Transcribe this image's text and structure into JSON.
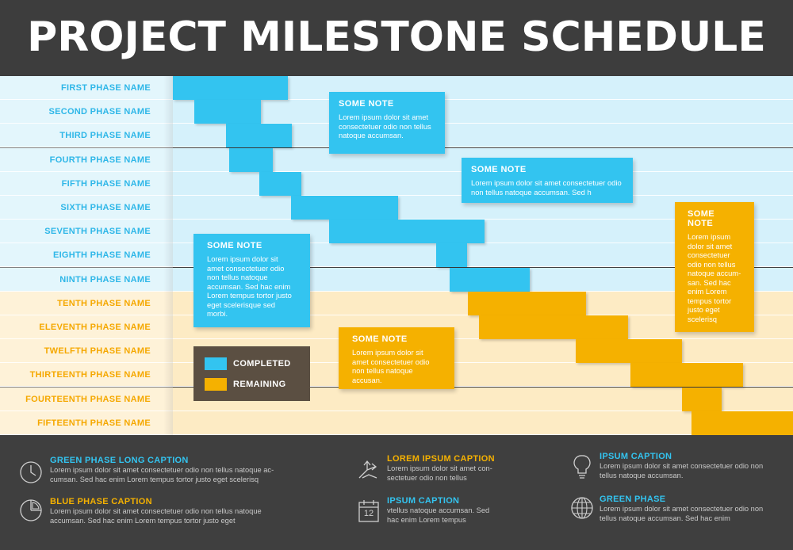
{
  "title": "PROJECT MILESTONE SCHEDULE",
  "chart_data": {
    "type": "bar",
    "subtype": "gantt",
    "x_range": [
      0,
      100
    ],
    "phases": [
      {
        "name": "FIRST PHASE NAME",
        "start": 0,
        "end": 18.6,
        "status": "completed"
      },
      {
        "name": "SECOND PHASE NAME",
        "start": 3.5,
        "end": 14.2,
        "status": "completed"
      },
      {
        "name": "THIRD PHASE NAME",
        "start": 8.6,
        "end": 19.2,
        "status": "completed"
      },
      {
        "name": "FOURTH PHASE NAME",
        "start": 9.1,
        "end": 16.1,
        "status": "completed"
      },
      {
        "name": "FIFTH PHASE NAME",
        "start": 13.9,
        "end": 20.7,
        "status": "completed"
      },
      {
        "name": "SIXTH PHASE NAME",
        "start": 19.0,
        "end": 36.3,
        "status": "completed"
      },
      {
        "name": "SEVENTH PHASE NAME",
        "start": 25.2,
        "end": 50.2,
        "status": "completed"
      },
      {
        "name": "EIGHTH PHASE NAME",
        "start": 42.4,
        "end": 47.5,
        "status": "completed"
      },
      {
        "name": "NINTH PHASE NAME",
        "start": 44.6,
        "end": 57.5,
        "status": "completed"
      },
      {
        "name": "TENTH PHASE NAME",
        "start": 47.6,
        "end": 66.6,
        "status": "remaining"
      },
      {
        "name": "ELEVENTH PHASE NAME",
        "start": 49.3,
        "end": 73.4,
        "status": "remaining"
      },
      {
        "name": "TWELFTH PHASE NAME",
        "start": 65.0,
        "end": 82.1,
        "status": "remaining"
      },
      {
        "name": "THIRTEENTH PHASE NAME",
        "start": 73.8,
        "end": 91.9,
        "status": "remaining"
      },
      {
        "name": "FOURTEENTH PHASE NAME",
        "start": 82.1,
        "end": 88.5,
        "status": "remaining"
      },
      {
        "name": "FIFTEENTH PHASE NAME",
        "start": 83.6,
        "end": 100,
        "status": "remaining"
      }
    ],
    "legend": [
      {
        "label": "COMPLETED",
        "color": "#33c4f0"
      },
      {
        "label": "REMAINING",
        "color": "#f5b100"
      }
    ],
    "notes": [
      {
        "title": "SOME NOTE",
        "text": "Lorem ipsum dolor sit amet consectetuer odio non tellus natoque accumsan.",
        "color": "blue"
      },
      {
        "title": "SOME NOTE",
        "text": "Lorem ipsum dolor sit amet consectetuer odio non tellus natoque accumsan. Sed h",
        "color": "blue"
      },
      {
        "title": "SOME NOTE",
        "text": "Lorem ipsum dolor sit amet consectetuer odio non tellus natoque accum-san. Sed hac enim Lorem tempus tortor justo eget scelerisq",
        "color": "orange"
      },
      {
        "title": "SOME NOTE",
        "text": "Lorem ipsum dolor sit amet consectetuer odio non tellus natoque accumsan. Sed hac enim Lorem tempus tortor justo eget scelerisque sed morbi.",
        "color": "blue"
      },
      {
        "title": "SOME NOTE",
        "text": "Lorem ipsum dolor sit amet consectetuer odio non tellus natoque accusan.",
        "color": "orange"
      }
    ]
  },
  "colors": {
    "completed": "#33c4f0",
    "remaining": "#f5b100",
    "label_blue": "#2fb7e8",
    "label_orange": "#f5a800"
  },
  "footer": [
    {
      "icon": "clock-icon",
      "title": "GREEN PHASE LONG CAPTION",
      "text": "Lorem ipsum dolor sit amet consectetuer odio non tellus natoque ac-cumsan. Sed hac enim Lorem tempus tortor justo eget scelerisq",
      "color": "#33c4f0"
    },
    {
      "icon": "pie-chart-icon",
      "title": "BLUE PHASE CAPTION",
      "text": "Lorem ipsum dolor sit amet consectetuer odio non tellus natoque accumsan. Sed hac enim Lorem tempus tortor justo eget",
      "color": "#f5b100"
    },
    {
      "icon": "arrows-icon",
      "title": "LOREM IPSUM CAPTION",
      "text": "Lorem ipsum dolor sit amet con-sectetuer odio non tellus",
      "color": "#f5b100"
    },
    {
      "icon": "calendar-icon",
      "title": "IPSUM CAPTION",
      "text": "vtellus natoque accumsan. Sed hac enim Lorem tempus",
      "color": "#33c4f0",
      "calendar_day": "12"
    },
    {
      "icon": "lightbulb-icon",
      "title": "IPSUM CAPTION",
      "text": "Lorem ipsum dolor sit amet consectetuer odio non tellus natoque accumsan.",
      "color": "#33c4f0"
    },
    {
      "icon": "globe-icon",
      "title": "GREEN PHASE",
      "text": "Lorem ipsum dolor sit amet consectetuer odio non tellus natoque accumsan. Sed hac enim",
      "color": "#33c4f0"
    }
  ]
}
